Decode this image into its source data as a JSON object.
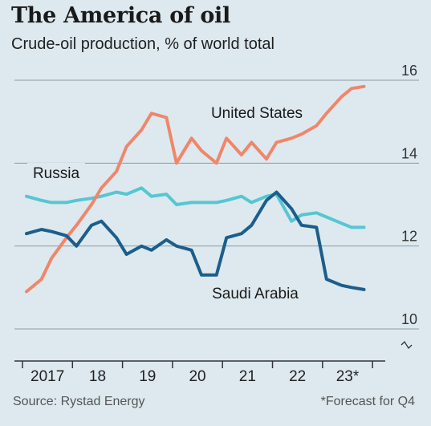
{
  "title": "The America of oil",
  "subtitle": "Crude-oil production, % of world total",
  "source": "Source: Rystad Energy",
  "footnote": "*Forecast for Q4",
  "colors": {
    "background": "#dde9ef",
    "grid": "#8a9aa3",
    "axis": "#333333",
    "united_states": "#f0866a",
    "russia": "#56c6d2",
    "saudi_arabia": "#1b5e8c"
  },
  "chart_data": {
    "type": "line",
    "title": "The America of oil",
    "ylabel": "",
    "xlabel": "",
    "x_tick_labels": [
      "2017",
      "18",
      "19",
      "20",
      "21",
      "22",
      "23*"
    ],
    "y_ticks": [
      10,
      12,
      14,
      16
    ],
    "y_tick_labels": [
      "10",
      "12",
      "14",
      "16"
    ],
    "ylim": [
      9.3,
      16.4
    ],
    "xlim": [
      2016.92,
      2023.95
    ],
    "grid": true,
    "axis_break": true,
    "series": [
      {
        "name": "United States",
        "color_key": "united_states",
        "points": [
          [
            2017.0,
            10.9
          ],
          [
            2017.3,
            11.2
          ],
          [
            2017.5,
            11.7
          ],
          [
            2017.8,
            12.2
          ],
          [
            2018.0,
            12.5
          ],
          [
            2018.3,
            13.0
          ],
          [
            2018.5,
            13.4
          ],
          [
            2018.8,
            13.8
          ],
          [
            2019.0,
            14.4
          ],
          [
            2019.3,
            14.8
          ],
          [
            2019.5,
            15.2
          ],
          [
            2019.8,
            15.1
          ],
          [
            2020.0,
            14.0
          ],
          [
            2020.3,
            14.6
          ],
          [
            2020.5,
            14.3
          ],
          [
            2020.8,
            14.0
          ],
          [
            2021.0,
            14.6
          ],
          [
            2021.3,
            14.2
          ],
          [
            2021.5,
            14.5
          ],
          [
            2021.8,
            14.1
          ],
          [
            2022.0,
            14.5
          ],
          [
            2022.3,
            14.6
          ],
          [
            2022.5,
            14.7
          ],
          [
            2022.8,
            14.9
          ],
          [
            2023.0,
            15.2
          ],
          [
            2023.3,
            15.6
          ],
          [
            2023.5,
            15.8
          ],
          [
            2023.75,
            15.85
          ]
        ]
      },
      {
        "name": "Russia",
        "color_key": "russia",
        "points": [
          [
            2017.0,
            13.2
          ],
          [
            2017.3,
            13.1
          ],
          [
            2017.5,
            13.05
          ],
          [
            2017.8,
            13.05
          ],
          [
            2018.0,
            13.1
          ],
          [
            2018.3,
            13.15
          ],
          [
            2018.5,
            13.2
          ],
          [
            2018.8,
            13.3
          ],
          [
            2019.0,
            13.25
          ],
          [
            2019.3,
            13.4
          ],
          [
            2019.5,
            13.2
          ],
          [
            2019.8,
            13.25
          ],
          [
            2020.0,
            13.0
          ],
          [
            2020.3,
            13.05
          ],
          [
            2020.5,
            13.05
          ],
          [
            2020.8,
            13.05
          ],
          [
            2021.0,
            13.1
          ],
          [
            2021.3,
            13.2
          ],
          [
            2021.5,
            13.05
          ],
          [
            2021.8,
            13.2
          ],
          [
            2022.0,
            13.25
          ],
          [
            2022.3,
            12.6
          ],
          [
            2022.5,
            12.75
          ],
          [
            2022.8,
            12.8
          ],
          [
            2023.0,
            12.7
          ],
          [
            2023.3,
            12.55
          ],
          [
            2023.5,
            12.45
          ],
          [
            2023.75,
            12.45
          ]
        ]
      },
      {
        "name": "Saudi Arabia",
        "color_key": "saudi_arabia",
        "points": [
          [
            2017.0,
            12.3
          ],
          [
            2017.3,
            12.4
          ],
          [
            2017.5,
            12.35
          ],
          [
            2017.8,
            12.25
          ],
          [
            2018.0,
            12.0
          ],
          [
            2018.3,
            12.5
          ],
          [
            2018.5,
            12.6
          ],
          [
            2018.8,
            12.2
          ],
          [
            2019.0,
            11.8
          ],
          [
            2019.3,
            12.0
          ],
          [
            2019.5,
            11.9
          ],
          [
            2019.8,
            12.15
          ],
          [
            2020.0,
            12.0
          ],
          [
            2020.3,
            11.9
          ],
          [
            2020.5,
            11.3
          ],
          [
            2020.8,
            11.3
          ],
          [
            2021.0,
            12.2
          ],
          [
            2021.3,
            12.3
          ],
          [
            2021.5,
            12.5
          ],
          [
            2021.8,
            13.1
          ],
          [
            2022.0,
            13.3
          ],
          [
            2022.3,
            12.9
          ],
          [
            2022.5,
            12.5
          ],
          [
            2022.8,
            12.45
          ],
          [
            2023.0,
            11.2
          ],
          [
            2023.3,
            11.05
          ],
          [
            2023.5,
            11.0
          ],
          [
            2023.75,
            10.95
          ]
        ]
      }
    ],
    "annotations": [
      {
        "text": "United States",
        "series": "United States"
      },
      {
        "text": "Russia",
        "series": "Russia"
      },
      {
        "text": "Saudi Arabia",
        "series": "Saudi Arabia"
      }
    ]
  }
}
